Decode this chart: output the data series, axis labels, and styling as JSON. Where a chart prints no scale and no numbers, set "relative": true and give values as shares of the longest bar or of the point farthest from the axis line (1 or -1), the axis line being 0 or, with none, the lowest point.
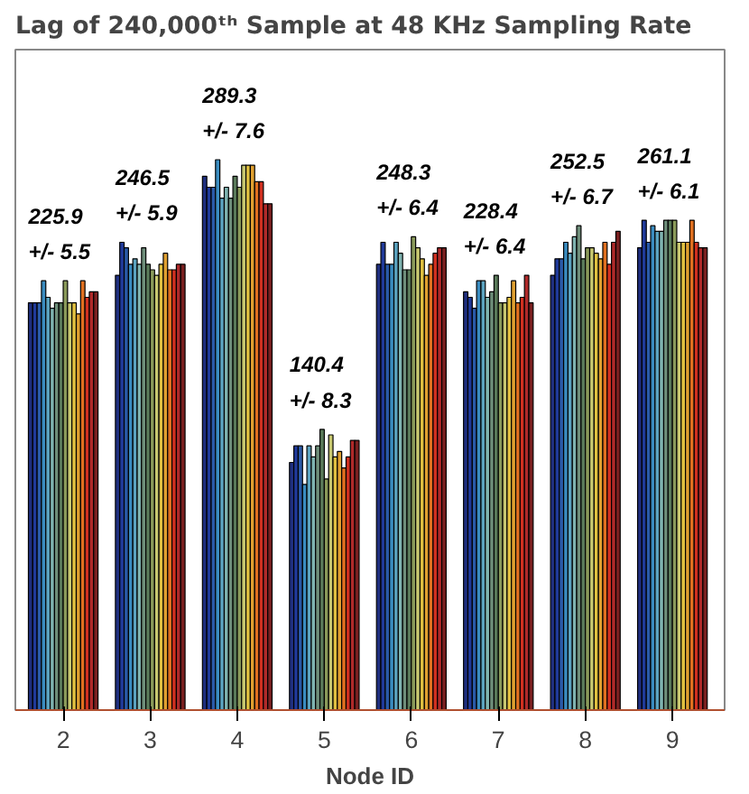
{
  "chart_data": {
    "type": "bar",
    "title": "Lag of 240,000ᵗʰ Sample at 48 KHz Sampling Rate",
    "xlabel": "Node ID",
    "categories": [
      "2",
      "3",
      "4",
      "5",
      "6",
      "7",
      "8",
      "9"
    ],
    "relative": true,
    "grid": false,
    "annotations": [
      "225.9\n+/- 5.5",
      "246.5\n+/- 5.9",
      "289.3\n+/- 7.6",
      "140.4\n+/- 8.3",
      "248.3\n+/- 6.4",
      "228.4\n+/- 6.4",
      "252.5\n+/- 6.7",
      "261.1\n+/- 6.1"
    ],
    "series": [
      {
        "color": "#1f2f7f",
        "values": [
          0.74,
          0.79,
          0.97,
          0.45,
          0.81,
          0.76,
          0.79,
          0.84
        ]
      },
      {
        "color": "#203a9a",
        "values": [
          0.74,
          0.85,
          0.95,
          0.48,
          0.85,
          0.75,
          0.82,
          0.89
        ]
      },
      {
        "color": "#2a5aa8",
        "values": [
          0.74,
          0.84,
          0.95,
          0.48,
          0.81,
          0.73,
          0.82,
          0.85
        ]
      },
      {
        "color": "#3a8cc0",
        "values": [
          0.78,
          0.81,
          1.0,
          0.41,
          0.81,
          0.78,
          0.85,
          0.88
        ]
      },
      {
        "color": "#5ba3c0",
        "values": [
          0.75,
          0.82,
          0.93,
          0.48,
          0.85,
          0.78,
          0.83,
          0.87
        ]
      },
      {
        "color": "#7fb3b0",
        "values": [
          0.73,
          0.81,
          0.95,
          0.46,
          0.83,
          0.75,
          0.86,
          0.87
        ]
      },
      {
        "color": "#6e8e7a",
        "values": [
          0.74,
          0.84,
          0.93,
          0.48,
          0.8,
          0.76,
          0.88,
          0.89
        ]
      },
      {
        "color": "#5a7a5a",
        "values": [
          0.74,
          0.81,
          0.97,
          0.51,
          0.8,
          0.79,
          0.82,
          0.89
        ]
      },
      {
        "color": "#8a9a5a",
        "values": [
          0.78,
          0.8,
          0.95,
          0.42,
          0.86,
          0.74,
          0.84,
          0.89
        ]
      },
      {
        "color": "#c8c870",
        "values": [
          0.74,
          0.79,
          0.99,
          0.5,
          0.84,
          0.74,
          0.84,
          0.85
        ]
      },
      {
        "color": "#e0c040",
        "values": [
          0.74,
          0.81,
          0.99,
          0.46,
          0.82,
          0.75,
          0.83,
          0.85
        ]
      },
      {
        "color": "#e0a030",
        "values": [
          0.72,
          0.83,
          0.99,
          0.47,
          0.79,
          0.78,
          0.82,
          0.85
        ]
      },
      {
        "color": "#e07020",
        "values": [
          0.78,
          0.8,
          0.96,
          0.44,
          0.81,
          0.74,
          0.85,
          0.89
        ]
      },
      {
        "color": "#d03020",
        "values": [
          0.75,
          0.8,
          0.96,
          0.46,
          0.83,
          0.75,
          0.81,
          0.85
        ]
      },
      {
        "color": "#b02a2a",
        "values": [
          0.76,
          0.81,
          0.92,
          0.49,
          0.84,
          0.79,
          0.85,
          0.84
        ]
      },
      {
        "color": "#7a2020",
        "values": [
          0.76,
          0.81,
          0.92,
          0.49,
          0.84,
          0.74,
          0.87,
          0.84
        ]
      }
    ]
  }
}
